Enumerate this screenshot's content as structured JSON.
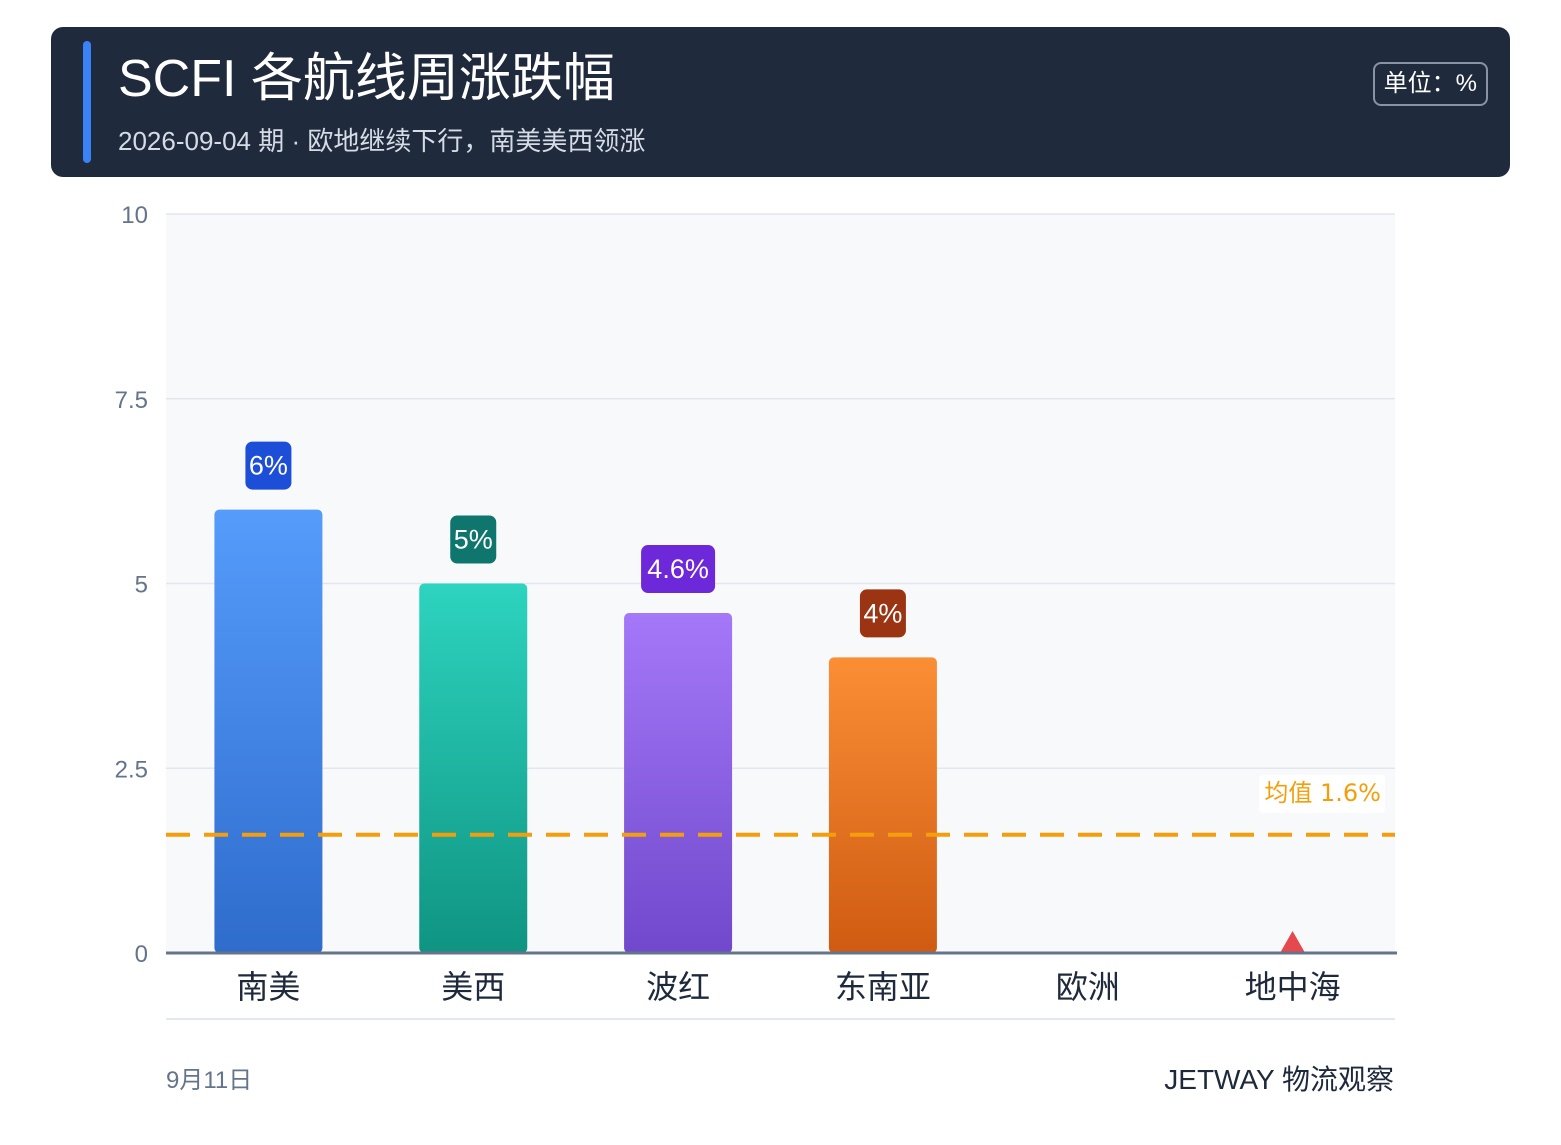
{
  "header": {
    "title": "SCFI 各航线周涨跌幅",
    "subtitle": "2026-09-04 期 · 欧地继续下行，南美美西领涨",
    "unit": "单位：%"
  },
  "footer": {
    "date": "9月11日",
    "brand": "JETWAY 物流观察"
  },
  "colors": {
    "header_bg": "#1f2a3c",
    "accent": "#3b82f6",
    "average_line": "#f59e0b",
    "down_marker": "#e5484d"
  },
  "chart_data": {
    "type": "bar",
    "title": "SCFI 各航线周涨跌幅",
    "categories": [
      "南美",
      "美西",
      "波红",
      "东南亚",
      "欧洲",
      "地中海"
    ],
    "values": [
      6,
      5,
      4.6,
      4,
      null,
      null
    ],
    "value_labels": [
      "6%",
      "5%",
      "4.6%",
      "4%",
      "",
      ""
    ],
    "bar_colors": [
      {
        "top": "#559cfb",
        "bottom": "#2f6ccc",
        "label_bg": "#1d4ed8"
      },
      {
        "top": "#2dd4bf",
        "bottom": "#0f9482",
        "label_bg": "#0f766e"
      },
      {
        "top": "#a478f8",
        "bottom": "#7148cc",
        "label_bg": "#6d28d9"
      },
      {
        "top": "#fb8e35",
        "bottom": "#cf5b12",
        "label_bg": "#9a3412"
      },
      null,
      null
    ],
    "down_markers": [
      "地中海"
    ],
    "ylim": [
      0,
      10
    ],
    "yticks": [
      0,
      2.5,
      5,
      7.5,
      10
    ],
    "ytick_labels": [
      "0",
      "2.5",
      "5",
      "7.5",
      "10"
    ],
    "grid": true,
    "average": {
      "value": 1.6,
      "label": "均值 1.6%"
    }
  }
}
